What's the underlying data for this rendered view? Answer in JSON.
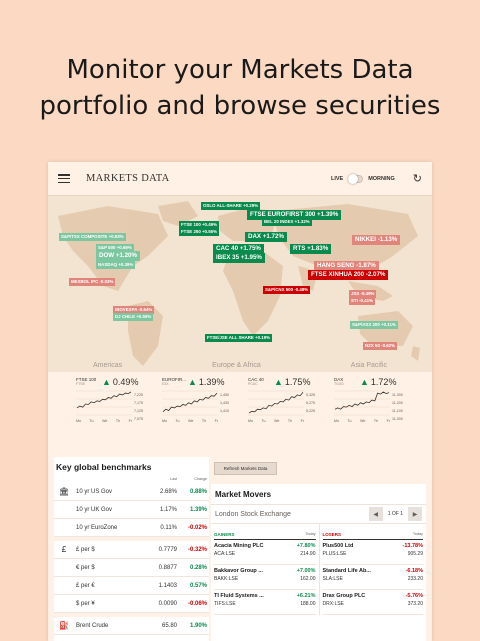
{
  "headline": [
    "Monitor your Markets Data",
    "portfolio and browse securities"
  ],
  "topbar": {
    "title": "MARKETS DATA",
    "live_label": "LIVE",
    "morning_label": "MORNING"
  },
  "map_tags": [
    {
      "text": "OSLO ALL-SHARE +0.29%",
      "kind": "up"
    },
    {
      "text": "FTSE EUROFIRST 300 +1.39%",
      "kind": "up"
    },
    {
      "text": "BEL 20 INDEX +1.32%",
      "kind": "up"
    },
    {
      "text": "FTSE 100 +0.49%",
      "kind": "up"
    },
    {
      "text": "FTSE 250 +0.55%",
      "kind": "up"
    },
    {
      "text": "S&P/TSX COMPOSITE +0.93%",
      "kind": "mild-up"
    },
    {
      "text": "S&P 500 +0.69%",
      "kind": "mild-up"
    },
    {
      "text": "DOW +1.20%",
      "kind": "mild-up"
    },
    {
      "text": "NASDAQ +0.39%",
      "kind": "mild-up"
    },
    {
      "text": "DAX +1.72%",
      "kind": "up"
    },
    {
      "text": "RTS +1.83%",
      "kind": "up"
    },
    {
      "text": "NIKKEI -1.13%",
      "kind": "mild-down"
    },
    {
      "text": "CAC 40 +1.75%",
      "kind": "up"
    },
    {
      "text": "IBEX 35 +1.95%",
      "kind": "up"
    },
    {
      "text": "HANG SENG -1.87%",
      "kind": "mild-down"
    },
    {
      "text": "FTSE XINHUA 200 -2.07%",
      "kind": "down"
    },
    {
      "text": "MEXBOL IPC -0.03%",
      "kind": "mild-down"
    },
    {
      "text": "S&P/CNX 500 -0.48%",
      "kind": "down"
    },
    {
      "text": "JSX -0.49%",
      "kind": "mild-down"
    },
    {
      "text": "STI -0.41%",
      "kind": "mild-down"
    },
    {
      "text": "IBOVESPA -0.64%",
      "kind": "mild-down"
    },
    {
      "text": "DJ CHILE +0.55%",
      "kind": "mild-up"
    },
    {
      "text": "S&P/ASX 200 +0.11%",
      "kind": "mild-up"
    },
    {
      "text": "FTSE/JSE ALL SHARE +0.19%",
      "kind": "up"
    },
    {
      "text": "NZX 50 -0.62%",
      "kind": "mild-down"
    }
  ],
  "regions": [
    "Americas",
    "Europe & Africa",
    "Asia Pacific"
  ],
  "sparklines": [
    {
      "name": "FTSE 100",
      "sub": "FTSE",
      "pct": "0.49%",
      "ticks": [
        "7,225",
        "7,175",
        "7,125",
        "7,075"
      ],
      "days": [
        "Mo",
        "Tu",
        "We",
        "Th",
        "Fr"
      ],
      "values": [
        0.35,
        0.42,
        0.38,
        0.5,
        0.48,
        0.58,
        0.55,
        0.62,
        0.6,
        0.68,
        0.66,
        0.75,
        0.72,
        0.82,
        0.78,
        0.88,
        0.85,
        0.92,
        0.9,
        0.96
      ]
    },
    {
      "name": "EUROFIR...",
      "sub": "E3X",
      "pct": "1.39%",
      "ticks": [
        "1,450",
        "1,430",
        "1,410"
      ],
      "days": [
        "Mo",
        "Tu",
        "We",
        "Th",
        "Fr"
      ],
      "values": [
        0.2,
        0.3,
        0.25,
        0.38,
        0.35,
        0.42,
        0.4,
        0.48,
        0.45,
        0.55,
        0.5,
        0.62,
        0.58,
        0.68,
        0.65,
        0.75,
        0.72,
        0.82,
        0.8,
        0.92
      ]
    },
    {
      "name": "CAC 40",
      "sub": "PCAC",
      "pct": "1.75%",
      "ticks": [
        "5,325",
        "5,275",
        "5,225"
      ],
      "days": [
        "Mo",
        "Tu",
        "We",
        "Th",
        "Fr"
      ],
      "values": [
        0.15,
        0.22,
        0.2,
        0.3,
        0.28,
        0.35,
        0.32,
        0.45,
        0.42,
        0.52,
        0.5,
        0.6,
        0.58,
        0.68,
        0.65,
        0.78,
        0.75,
        0.85,
        0.82,
        0.95
      ]
    },
    {
      "name": "DAX",
      "sub": "TGXD",
      "pct": "1.72%",
      "ticks": [
        "11,300",
        "11,200",
        "11,100",
        "11,000"
      ],
      "days": [
        "Mo",
        "Tu",
        "We",
        "Th",
        "Fr"
      ],
      "values": [
        0.3,
        0.35,
        0.3,
        0.4,
        0.38,
        0.45,
        0.4,
        0.5,
        0.45,
        0.55,
        0.5,
        0.58,
        0.55,
        0.65,
        0.62,
        0.92,
        0.88,
        0.96,
        0.9,
        0.94
      ]
    }
  ],
  "benchmarks": {
    "title": "Key global benchmarks",
    "col_last": "Last",
    "col_change": "Change",
    "rows": [
      {
        "icon": "bank-icon",
        "glyph": "🏛",
        "name": "10 yr US Gov",
        "last": "2.68%",
        "change": "0.88%",
        "dir": "pos",
        "group_start": true
      },
      {
        "icon": "",
        "glyph": "",
        "name": "10 yr UK Gov",
        "last": "1.17%",
        "change": "1.39%",
        "dir": "pos"
      },
      {
        "icon": "",
        "glyph": "",
        "name": "10 yr EuroZone",
        "last": "0.11%",
        "change": "-0.02%",
        "dir": "neg"
      },
      {
        "icon": "pound-icon",
        "glyph": "£",
        "name": "£ per $",
        "last": "0.7779",
        "change": "-0.32%",
        "dir": "neg",
        "group_start": true
      },
      {
        "icon": "",
        "glyph": "",
        "name": "€ per $",
        "last": "0.8877",
        "change": "0.28%",
        "dir": "pos"
      },
      {
        "icon": "",
        "glyph": "",
        "name": "£ per €",
        "last": "1.1403",
        "change": "0.57%",
        "dir": "pos"
      },
      {
        "icon": "",
        "glyph": "",
        "name": "$ per ¥",
        "last": "0.0090",
        "change": "-0.06%",
        "dir": "neg"
      },
      {
        "icon": "fuel-pump-icon",
        "glyph": "⛽",
        "name": "Brent Crude",
        "last": "65.80",
        "change": "1.90%",
        "dir": "pos",
        "group_start": true
      }
    ]
  },
  "refresh_button": "Refresh Markets Data",
  "movers": {
    "title": "Market Movers",
    "exchange": "London Stock Exchange",
    "pager": "1 OF 1",
    "gainers_label": "GAINERS",
    "losers_label": "LOSERS",
    "today_label": "Today",
    "gainers": [
      {
        "name": "Acacia Mining PLC",
        "change": "+7.80%",
        "ticker": "ACA:LSE",
        "price": "214.90"
      },
      {
        "name": "Bakkavor Group ...",
        "change": "+7.00%",
        "ticker": "BAKK:LSE",
        "price": "162.00"
      },
      {
        "name": "TI Fluid Systems ...",
        "change": "+6.21%",
        "ticker": "TIFS:LSE",
        "price": "188.00"
      }
    ],
    "losers": [
      {
        "name": "Plus500 Ltd",
        "change": "-13.78%",
        "ticker": "PLUS:LSE",
        "price": "905.29"
      },
      {
        "name": "Standard Life Ab...",
        "change": "-6.18%",
        "ticker": "SLA:LSE",
        "price": "233.20"
      },
      {
        "name": "Drax Group PLC",
        "change": "-5.76%",
        "ticker": "DRX:LSE",
        "price": "373.20"
      }
    ]
  }
}
